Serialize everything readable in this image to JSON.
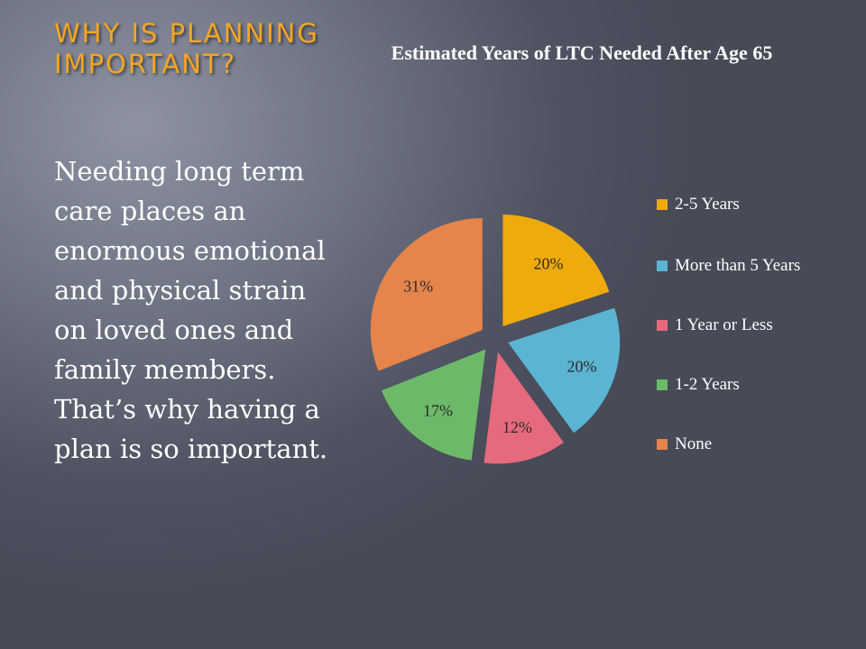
{
  "slide": {
    "title": "WHY IS PLANNING IMPORTANT?",
    "body": "Needing long term care places an enormous emotional and physical strain on loved ones and family members. That’s why having a plan is so important."
  },
  "chart_data": {
    "type": "pie",
    "title": "Estimated Years of LTC Needed After Age 65",
    "slices": [
      {
        "label": "2-5 Years",
        "value": 20,
        "display": "20%",
        "color": "#efaa0c"
      },
      {
        "label": "More than 5 Years",
        "value": 20,
        "display": "20%",
        "color": "#5ab4d2"
      },
      {
        "label": "1 Year or Less",
        "value": 12,
        "display": "12%",
        "color": "#e56a7d"
      },
      {
        "label": "1-2 Years",
        "value": 17,
        "display": "17%",
        "color": "#6db96a"
      },
      {
        "label": "None",
        "value": 31,
        "display": "31%",
        "color": "#e5844b"
      }
    ],
    "legend_position": "right",
    "exploded": true
  }
}
